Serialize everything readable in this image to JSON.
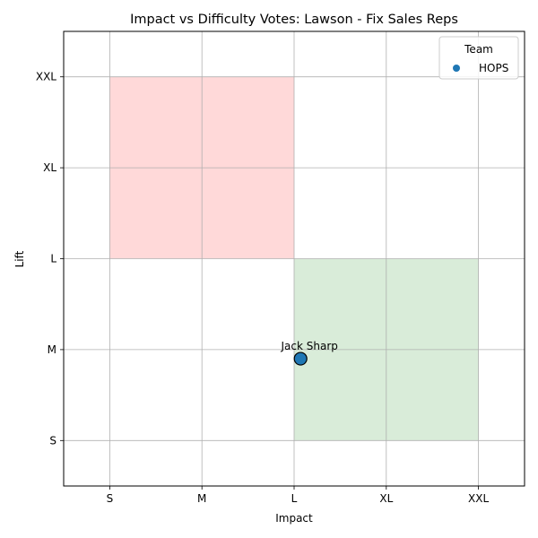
{
  "chart_data": {
    "type": "scatter",
    "title": "Impact vs Difficulty Votes: Lawson - Fix Sales Reps",
    "xlabel": "Impact",
    "ylabel": "Lift",
    "x_categories": [
      "S",
      "M",
      "L",
      "XL",
      "XXL"
    ],
    "y_categories": [
      "S",
      "M",
      "L",
      "XL",
      "XXL"
    ],
    "xlim": [
      -0.5,
      4.5
    ],
    "ylim": [
      -0.5,
      4.5
    ],
    "grid": true,
    "legend": {
      "title": "Team",
      "placement": "top-right",
      "entries": [
        "HOPS"
      ]
    },
    "regions": [
      {
        "x_range": [
          0,
          2
        ],
        "y_range": [
          2,
          4
        ],
        "color": "#ffd9d9"
      },
      {
        "x_range": [
          2,
          4
        ],
        "y_range": [
          0,
          2
        ],
        "color": "#d9ecd9"
      }
    ],
    "series": [
      {
        "name": "HOPS",
        "color": "#1f77b4",
        "points": [
          {
            "x": 2.07,
            "y": 0.9,
            "label": "Jack Sharp"
          }
        ]
      }
    ]
  }
}
